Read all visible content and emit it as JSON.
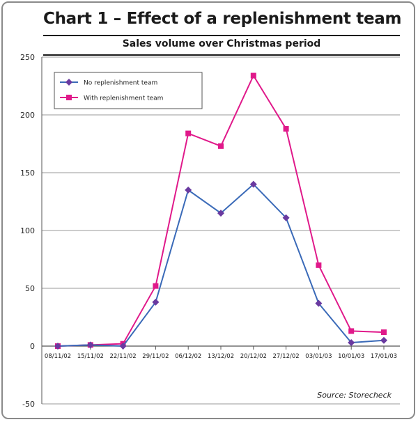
{
  "title": "Chart 1 – Effect of a replenishment team",
  "source": "Source: Storecheck",
  "colors": {
    "no_team": "#6a3aa0",
    "no_team_line": "#3a6ab8",
    "with_team": "#e0198a",
    "grid": "#9a9a9a",
    "axis": "#555555"
  },
  "chart_data": {
    "type": "line",
    "title": "Sales volume over Christmas period",
    "xlabel": "",
    "ylabel": "",
    "ylim": [
      -50,
      250
    ],
    "yticks": [
      -50,
      0,
      50,
      100,
      150,
      200,
      250
    ],
    "grid": true,
    "legend_position": "top-left",
    "categories": [
      "08/11/02",
      "15/11/02",
      "22/11/02",
      "29/11/02",
      "06/12/02",
      "13/12/02",
      "20/12/02",
      "27/12/02",
      "03/01/03",
      "10/01/03",
      "17/01/03"
    ],
    "series": [
      {
        "name": "No replenishment team",
        "marker": "diamond",
        "values": [
          0,
          1,
          0,
          38,
          135,
          115,
          140,
          111,
          37,
          3,
          5
        ]
      },
      {
        "name": "With replenishment team",
        "marker": "square",
        "values": [
          0,
          1,
          2,
          52,
          184,
          173,
          234,
          188,
          70,
          13,
          12
        ]
      }
    ]
  }
}
